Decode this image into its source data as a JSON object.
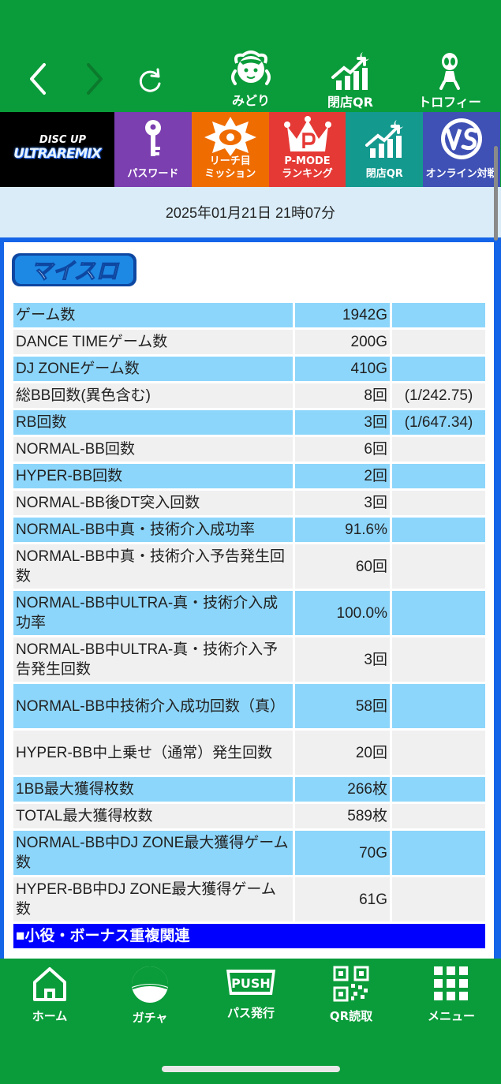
{
  "topnav": {
    "midori_label": "みどり",
    "closing_qr_label": "閉店QR",
    "trophy_label": "トロフィー"
  },
  "iconstrip": {
    "logo_line1": "DISC UP",
    "logo_line2": "ULTRAREMIX",
    "tiles": [
      {
        "label": "パスワード",
        "color": "#7b3fb0"
      },
      {
        "label": "リーチ目\nミッション",
        "color": "#ef6c00"
      },
      {
        "label": "P-MODE\nランキング",
        "color": "#e53935"
      },
      {
        "label": "閉店QR",
        "color": "#13998e"
      },
      {
        "label": "オンライン対戦",
        "color": "#3f51b5"
      }
    ]
  },
  "datetime": "2025年01月21日 21時07分",
  "myslo_logo": "マイスロ",
  "rows": [
    {
      "label": "ゲーム数",
      "value": "1942G",
      "extra": ""
    },
    {
      "label": "DANCE TIMEゲーム数",
      "value": "200G",
      "extra": ""
    },
    {
      "label": "DJ ZONEゲーム数",
      "value": "410G",
      "extra": ""
    },
    {
      "label": "総BB回数(異色含む)",
      "value": "8回",
      "extra": "(1/242.75)"
    },
    {
      "label": "RB回数",
      "value": "3回",
      "extra": "(1/647.34)"
    },
    {
      "label": "NORMAL-BB回数",
      "value": "6回",
      "extra": ""
    },
    {
      "label": "HYPER-BB回数",
      "value": "2回",
      "extra": ""
    },
    {
      "label": "NORMAL-BB後DT突入回数",
      "value": "3回",
      "extra": ""
    },
    {
      "label": "NORMAL-BB中真・技術介入成功率",
      "value": "91.6%",
      "extra": ""
    },
    {
      "label": "NORMAL-BB中真・技術介入予告発生回数",
      "value": "60回",
      "extra": ""
    },
    {
      "label": "NORMAL-BB中ULTRA-真・技術介入成功率",
      "value": "100.0%",
      "extra": ""
    },
    {
      "label": "NORMAL-BB中ULTRA-真・技術介入予告発生回数",
      "value": "3回",
      "extra": ""
    },
    {
      "label": "NORMAL-BB中技術介入成功回数（真）",
      "value": "58回",
      "extra": ""
    },
    {
      "label": "HYPER-BB中上乗せ（通常）発生回数",
      "value": "20回",
      "extra": ""
    },
    {
      "label": "1BB最大獲得枚数",
      "value": "266枚",
      "extra": ""
    },
    {
      "label": "TOTAL最大獲得枚数",
      "value": "589枚",
      "extra": ""
    },
    {
      "label": "NORMAL-BB中DJ ZONE最大獲得ゲーム数",
      "value": "70G",
      "extra": ""
    },
    {
      "label": "HYPER-BB中DJ ZONE最大獲得ゲーム数",
      "value": "61G",
      "extra": ""
    }
  ],
  "section_heading": "■小役・ボーナス重複関連",
  "bottomnav": {
    "home": "ホーム",
    "gacha": "ガチャ",
    "pass": "パス発行",
    "push_badge": "PUSH",
    "qr": "QR読取",
    "menu": "メニュー"
  }
}
